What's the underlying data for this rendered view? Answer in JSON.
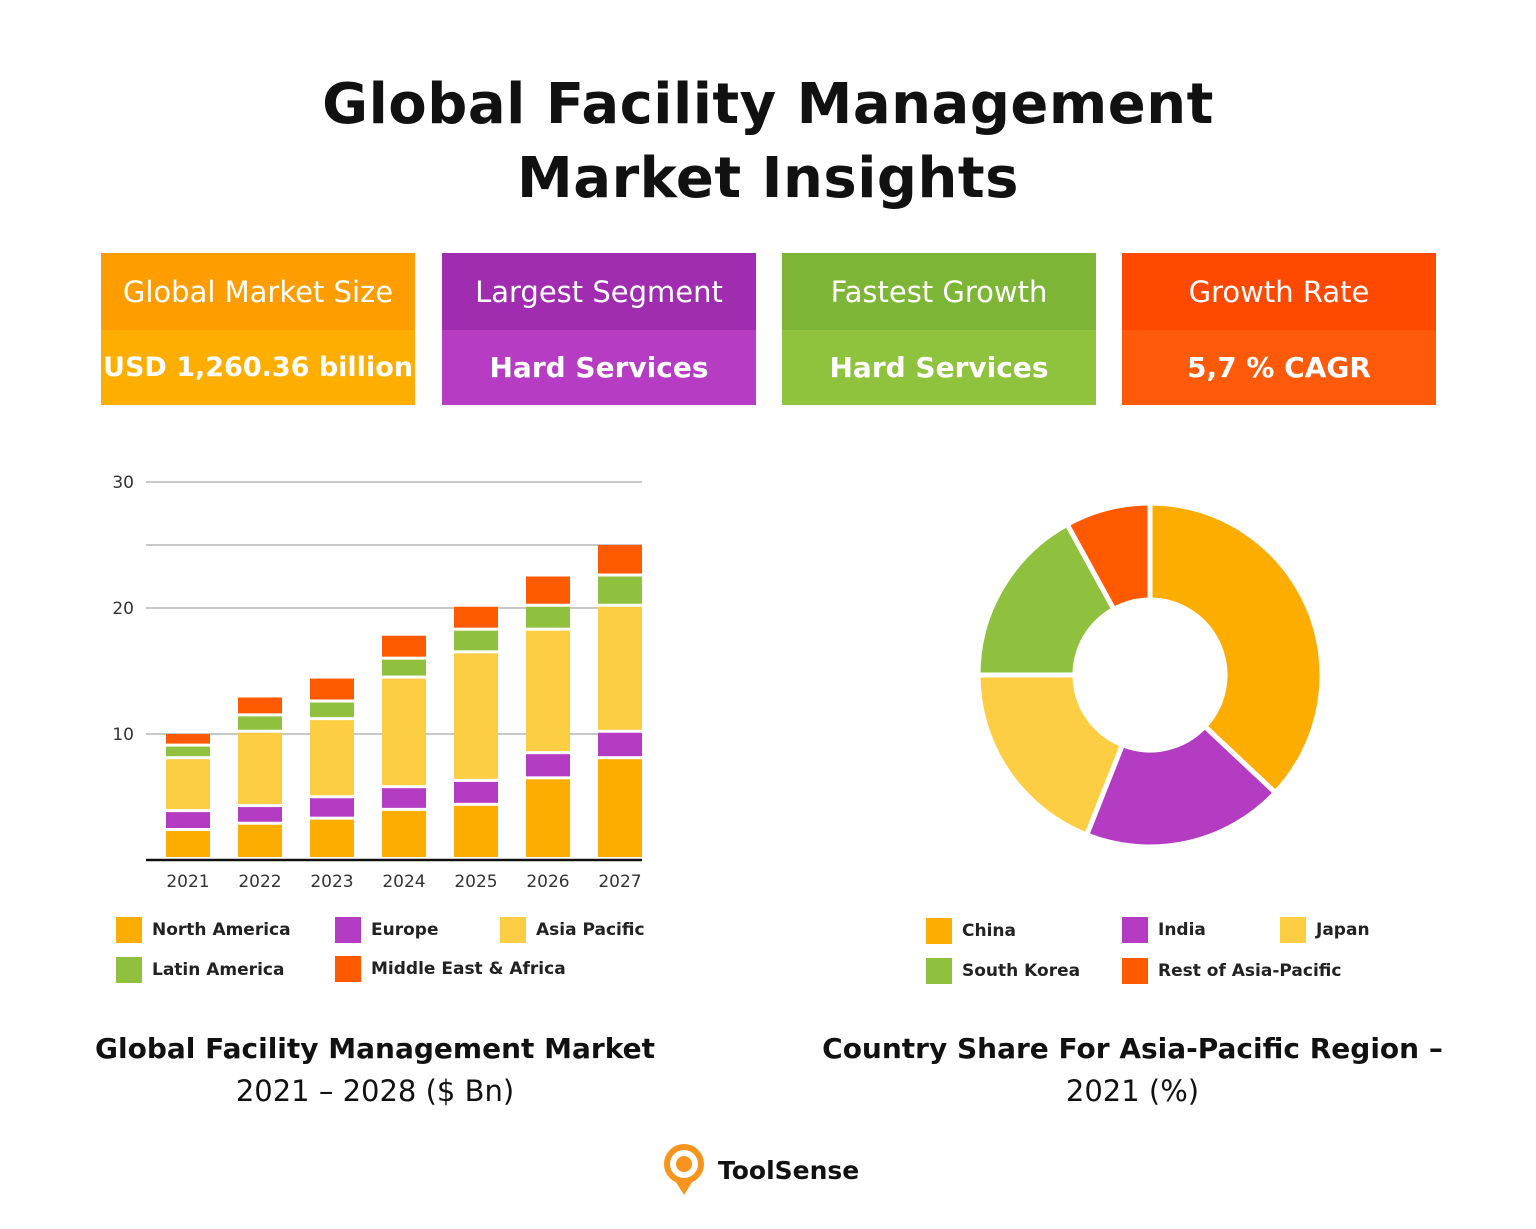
{
  "title": {
    "line1": "Global Facility Management",
    "line2": "Market Insights"
  },
  "cards": [
    {
      "label": "Global Market Size",
      "value": "USD 1,260.36 billion",
      "header_color": "#fd9d00",
      "value_color": "#fdae00"
    },
    {
      "label": "Largest Segment",
      "value": "Hard Services",
      "header_color": "#a02cb0",
      "value_color": "#b63cc4"
    },
    {
      "label": "Fastest Growth",
      "value": "Hard Services",
      "header_color": "#7db536",
      "value_color": "#8fc33e"
    },
    {
      "label": "Growth Rate",
      "value": "5,7 % CAGR",
      "header_color": "#ff4800",
      "value_color": "#ff5a0a"
    }
  ],
  "chart_data": [
    {
      "type": "bar",
      "stacked": true,
      "title": "Global Facility Management Market",
      "subtitle": "2021 – 2028 ($ Bn)",
      "categories": [
        "2021",
        "2022",
        "2023",
        "2024",
        "2025",
        "2026",
        "2027"
      ],
      "ylim": [
        0,
        30
      ],
      "yticks": [
        "10",
        "20",
        "30"
      ],
      "gridlines": [
        10,
        20,
        25,
        30
      ],
      "grid": true,
      "legend_position": "bottom",
      "series": [
        {
          "name": "North America",
          "color": "#fdad00",
          "values": [
            2.3,
            2.8,
            3.2,
            3.9,
            4.3,
            6.4,
            8.0
          ]
        },
        {
          "name": "Europe",
          "color": "#b43cc3",
          "values": [
            1.5,
            1.4,
            1.7,
            1.8,
            1.9,
            2.0,
            2.1
          ]
        },
        {
          "name": "Asia Pacific",
          "color": "#fdcd44",
          "values": [
            4.2,
            5.9,
            6.2,
            8.7,
            10.2,
            9.8,
            10.0
          ]
        },
        {
          "name": "Latin America",
          "color": "#8fc13e",
          "values": [
            1.0,
            1.3,
            1.4,
            1.5,
            1.8,
            1.9,
            2.4
          ]
        },
        {
          "name": "Middle East & Africa",
          "color": "#ff5a00",
          "values": [
            1.0,
            1.5,
            1.9,
            1.9,
            1.9,
            2.4,
            2.5
          ]
        }
      ]
    },
    {
      "type": "pie",
      "donut": true,
      "title": "Country Share For Asia-Pacific Region –",
      "subtitle": "2021 (%)",
      "legend_position": "bottom",
      "slices": [
        {
          "name": "China",
          "color": "#fdad00",
          "value": 37
        },
        {
          "name": "India",
          "color": "#b43cc3",
          "value": 19
        },
        {
          "name": "Japan",
          "color": "#fdcd44",
          "value": 19
        },
        {
          "name": "South Korea",
          "color": "#8fc13e",
          "value": 17
        },
        {
          "name": "Rest of Asia-Pacific",
          "color": "#ff5a00",
          "value": 8
        }
      ]
    }
  ],
  "brand": {
    "name": "ToolSense",
    "color": "#f7941d"
  }
}
